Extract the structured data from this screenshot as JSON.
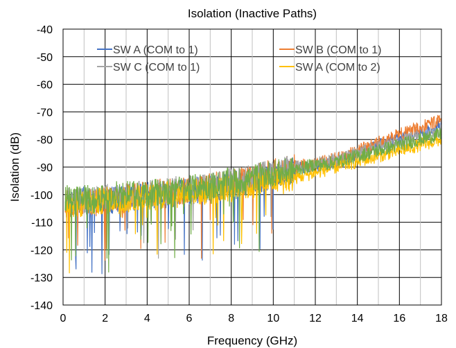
{
  "chart_data": {
    "type": "line",
    "title": "Isolation (Inactive Paths)",
    "xlabel": "Frequency (GHz)",
    "ylabel": "Isolation (dB)",
    "xlim": [
      0,
      18
    ],
    "ylim": [
      -140,
      -40
    ],
    "x_ticks": [
      "0",
      "2",
      "4",
      "6",
      "8",
      "10",
      "12",
      "14",
      "16",
      "18"
    ],
    "y_ticks": [
      "-40",
      "-50",
      "-60",
      "-70",
      "-80",
      "-90",
      "-100",
      "-110",
      "-120",
      "-130",
      "-140"
    ],
    "grid": true,
    "legend_position": "top",
    "series": [
      {
        "name": "SW A (COM to 1)",
        "color": "#4472C4",
        "x": [
          0.1,
          0.5,
          1,
          1.5,
          2,
          2.5,
          3,
          3.5,
          4,
          4.5,
          5,
          5.5,
          6,
          6.5,
          7,
          7.5,
          8,
          8.5,
          9,
          9.5,
          10,
          10.5,
          11,
          11.5,
          12,
          12.5,
          13,
          13.5,
          14,
          14.5,
          15,
          15.5,
          16,
          16.5,
          17,
          17.5,
          18
        ],
        "values": [
          -104,
          -103,
          -102,
          -103,
          -102,
          -102,
          -101,
          -101,
          -100,
          -100,
          -100,
          -99,
          -99,
          -98,
          -98,
          -97,
          -96,
          -96,
          -95,
          -94,
          -93,
          -92,
          -91,
          -90,
          -90,
          -89,
          -88,
          -87,
          -85,
          -84,
          -82,
          -81,
          -80,
          -79,
          -78,
          -77,
          -75
        ]
      },
      {
        "name": "SW B (COM to 1)",
        "color": "#ED7D31",
        "x": [
          0.1,
          0.5,
          1,
          1.5,
          2,
          2.5,
          3,
          3.5,
          4,
          4.5,
          5,
          5.5,
          6,
          6.5,
          7,
          7.5,
          8,
          8.5,
          9,
          9.5,
          10,
          10.5,
          11,
          11.5,
          12,
          12.5,
          13,
          13.5,
          14,
          14.5,
          15,
          15.5,
          16,
          16.5,
          17,
          17.5,
          18
        ],
        "values": [
          -103,
          -103,
          -102,
          -103,
          -102,
          -101,
          -101,
          -100,
          -100,
          -99,
          -99,
          -99,
          -98,
          -98,
          -97,
          -96,
          -96,
          -95,
          -94,
          -93,
          -92,
          -91,
          -90,
          -89,
          -89,
          -88,
          -87,
          -86,
          -84,
          -83,
          -81,
          -80,
          -78,
          -77,
          -76,
          -74,
          -73
        ]
      },
      {
        "name": "SW C (COM to 1)",
        "color": "#A5A5A5",
        "x": [
          0.1,
          0.5,
          1,
          1.5,
          2,
          2.5,
          3,
          3.5,
          4,
          4.5,
          5,
          5.5,
          6,
          6.5,
          7,
          7.5,
          8,
          8.5,
          9,
          9.5,
          10,
          10.5,
          11,
          11.5,
          12,
          12.5,
          13,
          13.5,
          14,
          14.5,
          15,
          15.5,
          16,
          16.5,
          17,
          17.5,
          18
        ],
        "values": [
          -102,
          -103,
          -102,
          -102,
          -101,
          -101,
          -101,
          -100,
          -100,
          -99,
          -99,
          -98,
          -98,
          -97,
          -97,
          -96,
          -95,
          -95,
          -94,
          -93,
          -92,
          -91,
          -90,
          -90,
          -89,
          -88,
          -87,
          -86,
          -85,
          -84,
          -83,
          -82,
          -81,
          -80,
          -79,
          -78,
          -77
        ]
      },
      {
        "name": "SW A (COM to 2)",
        "color": "#FFC000",
        "x": [
          0.1,
          0.5,
          1,
          1.5,
          2,
          2.5,
          3,
          3.5,
          4,
          4.5,
          5,
          5.5,
          6,
          6.5,
          7,
          7.5,
          8,
          8.5,
          9,
          9.5,
          10,
          10.5,
          11,
          11.5,
          12,
          12.5,
          13,
          13.5,
          14,
          14.5,
          15,
          15.5,
          16,
          16.5,
          17,
          17.5,
          18
        ],
        "values": [
          -104,
          -104,
          -103,
          -103,
          -102,
          -102,
          -102,
          -101,
          -101,
          -101,
          -100,
          -100,
          -99,
          -99,
          -99,
          -98,
          -98,
          -97,
          -97,
          -96,
          -95,
          -95,
          -94,
          -93,
          -92,
          -91,
          -90,
          -89,
          -88,
          -87,
          -86,
          -85,
          -84,
          -83,
          -82,
          -81,
          -80
        ]
      },
      {
        "name": "",
        "color": "#70AD47",
        "x": [
          0.1,
          0.5,
          1,
          1.5,
          2,
          2.5,
          3,
          3.5,
          4,
          4.5,
          5,
          5.5,
          6,
          6.5,
          7,
          7.5,
          8,
          8.5,
          9,
          9.5,
          10,
          10.5,
          11,
          11.5,
          12,
          12.5,
          13,
          13.5,
          14,
          14.5,
          15,
          15.5,
          16,
          16.5,
          17,
          17.5,
          18
        ],
        "values": [
          -101,
          -102,
          -101,
          -102,
          -101,
          -100,
          -100,
          -100,
          -99,
          -99,
          -99,
          -98,
          -98,
          -97,
          -97,
          -96,
          -95,
          -95,
          -94,
          -93,
          -92,
          -92,
          -91,
          -90,
          -89,
          -89,
          -88,
          -87,
          -86,
          -85,
          -84,
          -83,
          -82,
          -81,
          -80,
          -79,
          -78
        ]
      }
    ]
  }
}
